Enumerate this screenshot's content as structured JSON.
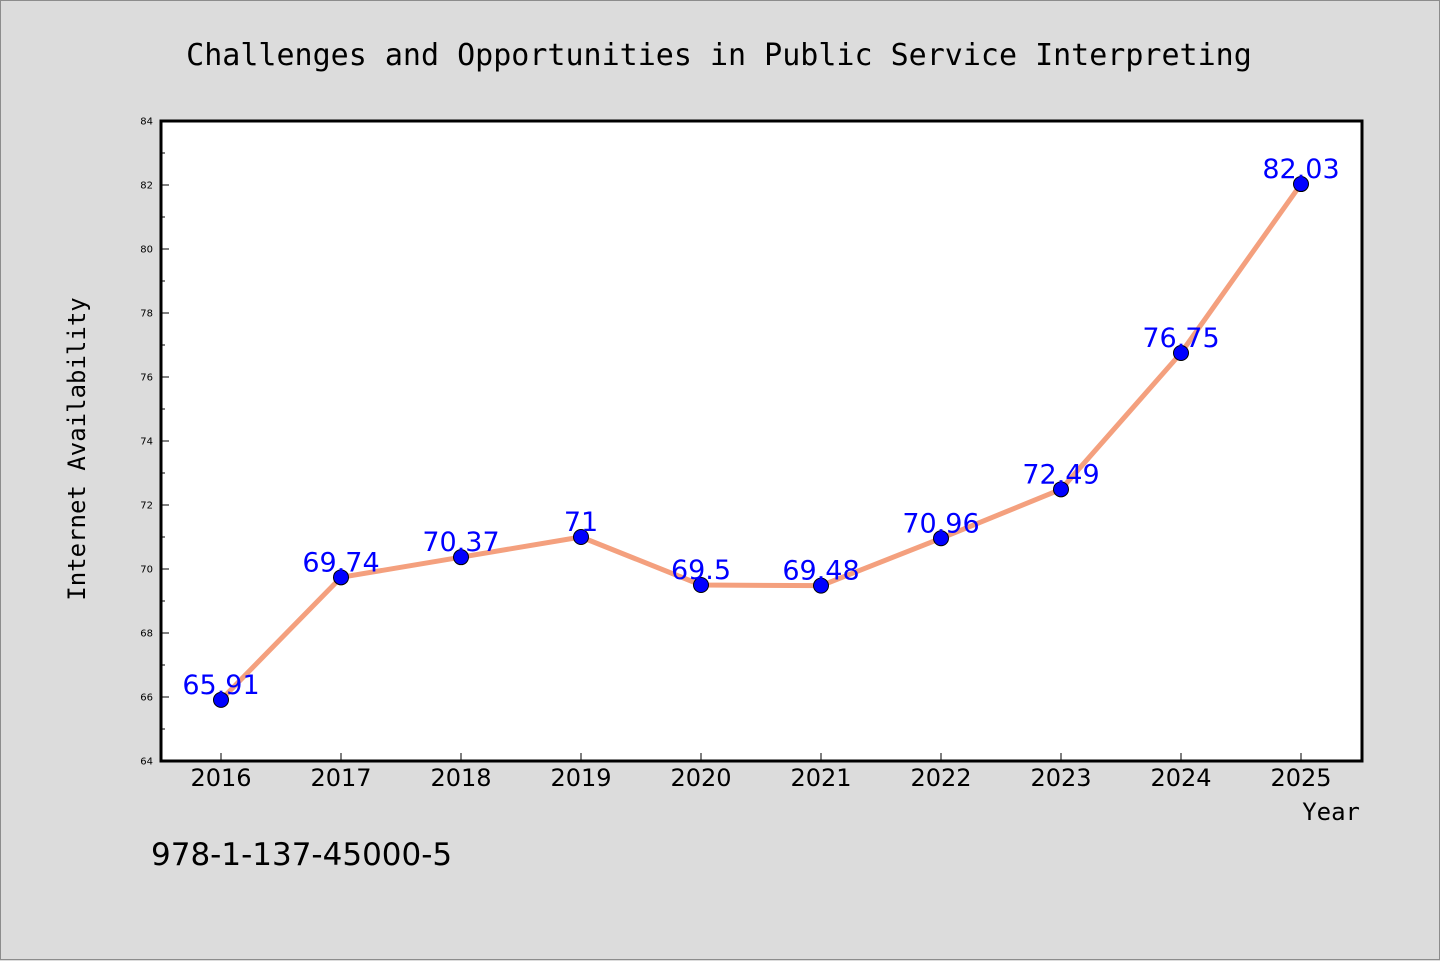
{
  "chart_data": {
    "type": "line",
    "title": "Challenges and Opportunities in Public Service Interpreting",
    "xlabel": "Year",
    "ylabel": "Internet Availability",
    "categories": [
      "2016",
      "2017",
      "2018",
      "2019",
      "2020",
      "2021",
      "2022",
      "2023",
      "2024",
      "2025"
    ],
    "series": [
      {
        "values": [
          65.91,
          69.74,
          70.37,
          71,
          69.5,
          69.48,
          70.96,
          72.49,
          76.75,
          82.03
        ],
        "labels": [
          "65.91",
          "69.74",
          "70.37",
          "71",
          "69.5",
          "69.48",
          "70.96",
          "72.49",
          "76.75",
          "82.03"
        ],
        "line_color": "#f4a07e",
        "marker_color": "#0000ff"
      }
    ],
    "ylim": [
      64,
      84
    ],
    "yticks": [
      64,
      66,
      68,
      70,
      72,
      74,
      76,
      78,
      80,
      82,
      84
    ],
    "ytick_labels": [
      "64",
      "66",
      "68",
      "70",
      "72",
      "74",
      "76",
      "78",
      "80",
      "82",
      "84"
    ],
    "grid": false,
    "legend": "none"
  },
  "footer": {
    "isbn": "978-1-137-45000-5"
  }
}
